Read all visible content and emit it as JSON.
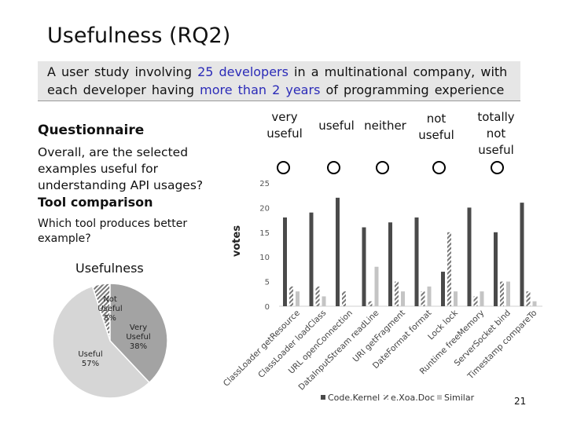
{
  "slide": {
    "title": "Usefulness (RQ2)",
    "intro": {
      "part1": "A user study involving ",
      "highlight1": "25 developers",
      "part2": " in a multinational company, with each developer having ",
      "highlight2": "more than 2 years",
      "part3": " of programming experience"
    },
    "questionnaire_heading": "Questionnaire",
    "question_text": "Overall, are the selected examples useful for understanding API usages?",
    "tool_heading": "Tool comparison",
    "tool_question": "Which tool produces better example?",
    "scale": [
      "very useful",
      "useful",
      "neither",
      "not useful",
      "totally not useful"
    ],
    "page_number": "21",
    "colors": {
      "highlight": "#2b2bb8",
      "bar_dark": "#4a4a4a",
      "bar_hatch": "#777777",
      "bar_light": "#c4c4c4"
    }
  },
  "chart_data": [
    {
      "type": "pie",
      "title": "Usefulness",
      "slices": [
        {
          "label": "Not Useful",
          "value": 5,
          "text": "5%",
          "color": "#dedede"
        },
        {
          "label": "Very Useful",
          "value": 38,
          "text": "38%",
          "color": "#a3a3a3"
        },
        {
          "label": "Useful",
          "value": 57,
          "text": "57%",
          "color": "#d6d6d6"
        }
      ]
    },
    {
      "type": "bar",
      "ylabel": "votes",
      "ylim": [
        0,
        25
      ],
      "yticks": [
        0,
        5,
        10,
        15,
        20,
        25
      ],
      "grid": false,
      "legend_position": "bottom",
      "categories": [
        "ClassLoader getResource",
        "ClassLoader loadClass",
        "URL openConnection",
        "DataInputStream readLine",
        "URI getFragment",
        "DateFormat format",
        "Lock lock",
        "Runtime freeMemory",
        "ServerSocket bind",
        "Timestamp compareTo"
      ],
      "series": [
        {
          "name": "Code.Kernel",
          "values": [
            18,
            19,
            22,
            16,
            17,
            18,
            7,
            20,
            15,
            21
          ]
        },
        {
          "name": "e.Xoa.Doc",
          "values": [
            4,
            4,
            3,
            1,
            5,
            3,
            15,
            2,
            5,
            3
          ]
        },
        {
          "name": "Similar",
          "values": [
            3,
            2,
            0,
            8,
            3,
            4,
            3,
            3,
            5,
            1
          ]
        }
      ]
    }
  ]
}
